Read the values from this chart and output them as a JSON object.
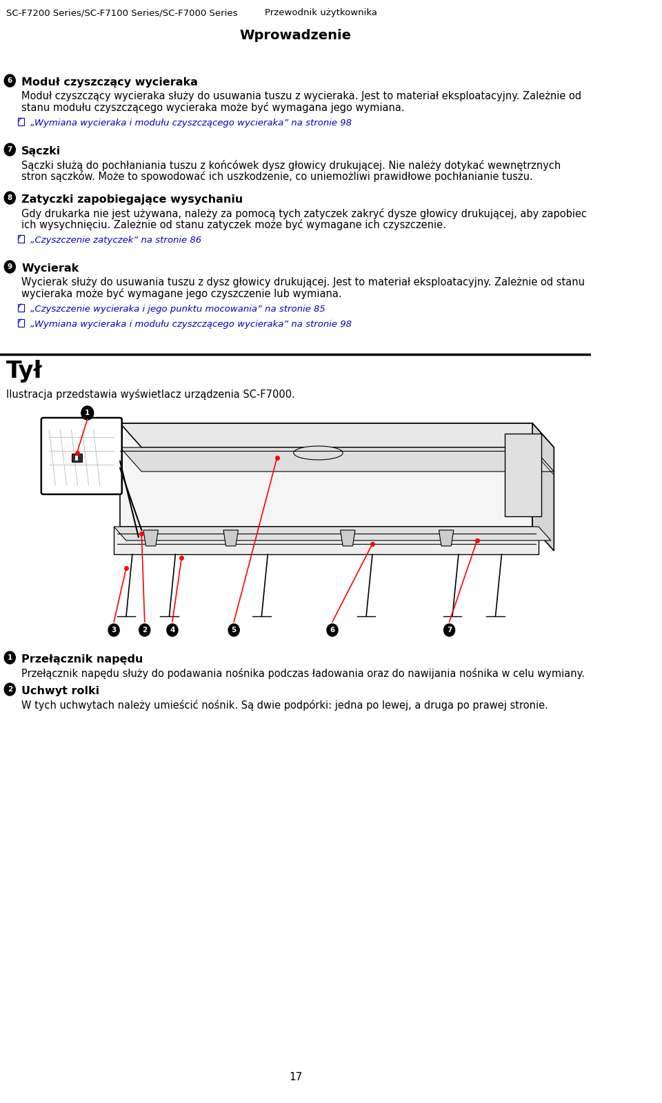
{
  "bg_color": "#ffffff",
  "header_left": "SC-F7200 Series/SC-F7100 Series/SC-F7000 Series",
  "header_right": "Przewodnik użytkownika",
  "section_title": "Wprowadzenie",
  "link_color": "#0000bb",
  "text_color": "#000000",
  "header_fontsize": 9.5,
  "title_fontsize": 14,
  "section2_title_fontsize": 24,
  "body_fontsize": 10.5,
  "item_title_fontsize": 11.5,
  "page_number": "17",
  "items": [
    {
      "number": "6",
      "bold_title": "Moduł czyszczący wycieraka",
      "lines": [
        "Moduł czyszczący wycieraka służy do usuwania tuszu z wycieraka. Jest to materiał eksploatacyjny. Zależnie od",
        "stanu modułu czyszczącego wycieraka może być wymagana jego wymiana."
      ],
      "links": [
        "„Wymiana wycieraka i modułu czyszczącego wycieraka” na stronie 98"
      ]
    },
    {
      "number": "7",
      "bold_title": "Sączki",
      "lines": [
        "Sączki służą do pochłaniania tuszu z końcówek dysz głowicy drukującej. Nie należy dotykać wewnętrznych",
        "stron sączków. Może to spowodować ich uszkodzenie, co uniemożliwi prawidłowe pochłanianie tuszu."
      ],
      "links": []
    },
    {
      "number": "8",
      "bold_title": "Zatyczki zapobiegające wysychaniu",
      "lines": [
        "Gdy drukarka nie jest używana, należy za pomocą tych zatyczek zakryć dysze głowicy drukującej, aby zapobiec",
        "ich wysychnięciu. Zależnie od stanu zatyczek może być wymagane ich czyszczenie."
      ],
      "links": [
        "„Czyszczenie zatyczek” na stronie 86"
      ]
    },
    {
      "number": "9",
      "bold_title": "Wycierak",
      "lines": [
        "Wycierak służy do usuwania tuszu z dysz głowicy drukującej. Jest to materiał eksploatacyjny. Zależnie od stanu",
        "wycieraka może być wymagane jego czyszczenie lub wymiana."
      ],
      "links": [
        "„Czyszczenie wycieraka i jego punktu mocowania” na stronie 85",
        "„Wymiana wycieraka i modułu czyszczącego wycieraka” na stronie 98"
      ]
    }
  ],
  "section2_title": "Tył",
  "section2_subtitle": "Ilustracja przedstawia wyświetlacz urządzenia SC-F7000.",
  "bottom_items": [
    {
      "number": "1",
      "bold_title": "Przełącznik napędu",
      "body": "Przełącznik napędu służy do podawania nośnika podczas ładowania oraz do nawijania nośnika w celu wymiany."
    },
    {
      "number": "2",
      "bold_title": "Uchwyt rolki",
      "body": "W tych uchwytach należy umieścić nośnik. Są dwie podpórki: jedna po lewej, a druga po prawej stronie."
    }
  ]
}
